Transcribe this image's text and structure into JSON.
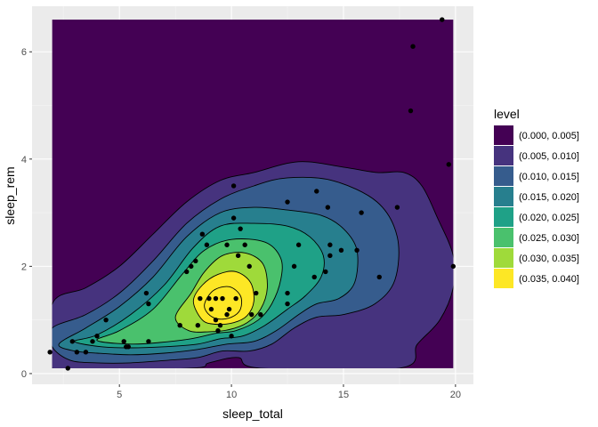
{
  "chart_data": {
    "type": "contour",
    "subtype": "filled 2d density with scatter overlay",
    "xlabel": "sleep_total",
    "ylabel": "sleep_rem",
    "xlim": [
      1.1,
      20.8
    ],
    "ylim": [
      -0.2,
      6.85
    ],
    "x_ticks": [
      5,
      10,
      15,
      20
    ],
    "y_ticks": [
      0,
      2,
      4,
      6
    ],
    "grid": true,
    "legend": {
      "title": "level",
      "position": "right",
      "entries": [
        {
          "label": "(0.000, 0.005]",
          "color": "#440154"
        },
        {
          "label": "(0.005, 0.010]",
          "color": "#46337E"
        },
        {
          "label": "(0.010, 0.015]",
          "color": "#365C8D"
        },
        {
          "label": "(0.015, 0.020]",
          "color": "#277F8E"
        },
        {
          "label": "(0.020, 0.025]",
          "color": "#1FA187"
        },
        {
          "label": "(0.025, 0.030]",
          "color": "#4AC16D"
        },
        {
          "label": "(0.030, 0.035]",
          "color": "#9FDA3A"
        },
        {
          "label": "(0.035, 0.040]",
          "color": "#FDE725"
        }
      ]
    },
    "density_extent": {
      "x": [
        2.0,
        19.9
      ],
      "y": [
        0.1,
        6.6
      ]
    },
    "contour_levels": [
      {
        "level": 1,
        "points": [
          [
            2.0,
            1.3
          ],
          [
            3.5,
            1.6
          ],
          [
            5.0,
            2.0
          ],
          [
            6.5,
            2.6
          ],
          [
            8.0,
            3.2
          ],
          [
            9.5,
            3.6
          ],
          [
            11.0,
            3.75
          ],
          [
            13.0,
            3.95
          ],
          [
            15.0,
            3.85
          ],
          [
            16.5,
            3.75
          ],
          [
            17.7,
            3.75
          ],
          [
            18.5,
            3.5
          ],
          [
            19.2,
            2.9
          ],
          [
            19.9,
            2.2
          ],
          [
            19.9,
            1.6
          ],
          [
            19.3,
            1.0
          ],
          [
            18.3,
            0.55
          ],
          [
            17.5,
            0.1
          ],
          [
            11.3,
            0.1
          ],
          [
            10.3,
            0.3
          ],
          [
            9.0,
            0.2
          ],
          [
            8.1,
            0.1
          ],
          [
            2.0,
            0.1
          ]
        ]
      },
      {
        "level": 2,
        "points": [
          [
            2.0,
            0.85
          ],
          [
            3.5,
            1.1
          ],
          [
            5.0,
            1.5
          ],
          [
            6.5,
            2.1
          ],
          [
            8.0,
            2.8
          ],
          [
            9.5,
            3.25
          ],
          [
            11.0,
            3.5
          ],
          [
            12.5,
            3.65
          ],
          [
            14.5,
            3.6
          ],
          [
            16.5,
            3.2
          ],
          [
            17.4,
            2.55
          ],
          [
            17.3,
            1.75
          ],
          [
            16.4,
            1.3
          ],
          [
            15.0,
            1.1
          ],
          [
            13.8,
            1.05
          ],
          [
            12.8,
            0.85
          ],
          [
            11.8,
            0.55
          ],
          [
            10.8,
            0.42
          ],
          [
            9.6,
            0.42
          ],
          [
            8.5,
            0.3
          ],
          [
            7.2,
            0.25
          ],
          [
            5.5,
            0.2
          ],
          [
            4.0,
            0.2
          ],
          [
            2.8,
            0.25
          ],
          [
            2.0,
            0.5
          ]
        ]
      },
      {
        "level": 3,
        "points": [
          [
            2.3,
            0.55
          ],
          [
            3.5,
            0.85
          ],
          [
            5.0,
            1.25
          ],
          [
            6.5,
            1.8
          ],
          [
            8.0,
            2.55
          ],
          [
            9.5,
            3.0
          ],
          [
            11.0,
            3.1
          ],
          [
            12.5,
            3.05
          ],
          [
            14.0,
            2.95
          ],
          [
            15.0,
            2.7
          ],
          [
            15.6,
            2.3
          ],
          [
            15.5,
            1.7
          ],
          [
            14.8,
            1.4
          ],
          [
            13.8,
            1.3
          ],
          [
            13.0,
            1.1
          ],
          [
            12.0,
            0.8
          ],
          [
            11.0,
            0.6
          ],
          [
            9.8,
            0.55
          ],
          [
            8.5,
            0.45
          ],
          [
            7.0,
            0.38
          ],
          [
            5.5,
            0.35
          ],
          [
            4.0,
            0.38
          ],
          [
            3.0,
            0.42
          ]
        ]
      },
      {
        "level": 4,
        "points": [
          [
            3.0,
            0.6
          ],
          [
            4.0,
            0.72
          ],
          [
            5.5,
            1.1
          ],
          [
            7.0,
            1.65
          ],
          [
            8.3,
            2.35
          ],
          [
            9.5,
            2.75
          ],
          [
            11.0,
            2.8
          ],
          [
            12.5,
            2.75
          ],
          [
            13.5,
            2.55
          ],
          [
            14.1,
            2.2
          ],
          [
            14.0,
            1.8
          ],
          [
            13.3,
            1.45
          ],
          [
            12.5,
            1.2
          ],
          [
            11.5,
            0.9
          ],
          [
            10.5,
            0.7
          ],
          [
            9.5,
            0.65
          ],
          [
            8.5,
            0.55
          ],
          [
            7.0,
            0.5
          ],
          [
            5.5,
            0.48
          ],
          [
            4.2,
            0.5
          ]
        ]
      },
      {
        "level": 5,
        "points": [
          [
            4.0,
            0.62
          ],
          [
            5.0,
            0.8
          ],
          [
            6.5,
            1.2
          ],
          [
            7.8,
            1.85
          ],
          [
            8.8,
            2.3
          ],
          [
            10.0,
            2.5
          ],
          [
            11.5,
            2.45
          ],
          [
            12.2,
            2.15
          ],
          [
            12.2,
            1.75
          ],
          [
            11.8,
            1.3
          ],
          [
            11.2,
            1.0
          ],
          [
            10.2,
            0.8
          ],
          [
            9.3,
            0.75
          ],
          [
            8.2,
            0.65
          ],
          [
            6.8,
            0.58
          ],
          [
            5.5,
            0.55
          ]
        ]
      },
      {
        "level": 6,
        "points": [
          [
            7.5,
            1.05
          ],
          [
            8.2,
            1.5
          ],
          [
            8.8,
            1.9
          ],
          [
            9.6,
            2.2
          ],
          [
            10.6,
            2.25
          ],
          [
            11.4,
            2.05
          ],
          [
            11.6,
            1.6
          ],
          [
            11.3,
            1.2
          ],
          [
            10.7,
            0.95
          ],
          [
            9.9,
            0.82
          ],
          [
            9.0,
            0.78
          ],
          [
            8.1,
            0.8
          ]
        ]
      },
      {
        "level": 7,
        "points": [
          [
            8.3,
            1.35
          ],
          [
            8.7,
            1.65
          ],
          [
            9.4,
            1.85
          ],
          [
            10.2,
            1.9
          ],
          [
            10.85,
            1.7
          ],
          [
            11.0,
            1.35
          ],
          [
            10.7,
            1.08
          ],
          [
            10.1,
            0.95
          ],
          [
            9.3,
            0.92
          ],
          [
            8.7,
            1.0
          ]
        ]
      },
      {
        "level": 8,
        "points": [
          [
            8.8,
            1.3
          ],
          [
            9.2,
            1.55
          ],
          [
            9.9,
            1.62
          ],
          [
            10.4,
            1.45
          ],
          [
            10.4,
            1.2
          ],
          [
            10.0,
            1.05
          ],
          [
            9.4,
            1.02
          ],
          [
            8.95,
            1.12
          ]
        ]
      }
    ],
    "points": [
      [
        1.9,
        0.4
      ],
      [
        2.7,
        0.1
      ],
      [
        2.9,
        0.6
      ],
      [
        3.1,
        0.4
      ],
      [
        3.5,
        0.4
      ],
      [
        3.8,
        0.6
      ],
      [
        4.0,
        0.7
      ],
      [
        4.4,
        1.0
      ],
      [
        5.2,
        0.6
      ],
      [
        5.3,
        0.5
      ],
      [
        5.4,
        0.5
      ],
      [
        6.2,
        1.5
      ],
      [
        6.3,
        1.3
      ],
      [
        6.3,
        0.6
      ],
      [
        7.7,
        0.9
      ],
      [
        8.0,
        1.9
      ],
      [
        8.2,
        2.0
      ],
      [
        8.4,
        2.1
      ],
      [
        8.5,
        0.9
      ],
      [
        8.6,
        1.4
      ],
      [
        8.7,
        2.6
      ],
      [
        8.9,
        2.4
      ],
      [
        9.0,
        1.4
      ],
      [
        9.1,
        1.2
      ],
      [
        9.3,
        1.4
      ],
      [
        9.3,
        1.0
      ],
      [
        9.4,
        0.8
      ],
      [
        9.5,
        0.9
      ],
      [
        9.6,
        1.4
      ],
      [
        9.8,
        1.1
      ],
      [
        9.8,
        2.4
      ],
      [
        9.9,
        1.2
      ],
      [
        10.0,
        0.7
      ],
      [
        10.1,
        2.9
      ],
      [
        10.1,
        3.5
      ],
      [
        10.2,
        1.4
      ],
      [
        10.3,
        2.2
      ],
      [
        10.4,
        2.7
      ],
      [
        10.6,
        2.4
      ],
      [
        10.8,
        2.0
      ],
      [
        10.9,
        1.1
      ],
      [
        11.1,
        1.5
      ],
      [
        11.3,
        1.1
      ],
      [
        12.5,
        3.2
      ],
      [
        12.5,
        1.5
      ],
      [
        12.5,
        1.3
      ],
      [
        12.8,
        2.0
      ],
      [
        13.0,
        2.4
      ],
      [
        13.7,
        1.8
      ],
      [
        13.8,
        3.4
      ],
      [
        14.2,
        1.9
      ],
      [
        14.3,
        3.1
      ],
      [
        14.4,
        2.2
      ],
      [
        14.4,
        2.4
      ],
      [
        14.9,
        2.3
      ],
      [
        15.6,
        2.3
      ],
      [
        15.8,
        3.0
      ],
      [
        16.6,
        1.8
      ],
      [
        17.4,
        3.1
      ],
      [
        18.0,
        4.9
      ],
      [
        18.1,
        6.1
      ],
      [
        19.4,
        6.6
      ],
      [
        19.7,
        3.9
      ],
      [
        19.9,
        2.0
      ]
    ]
  }
}
